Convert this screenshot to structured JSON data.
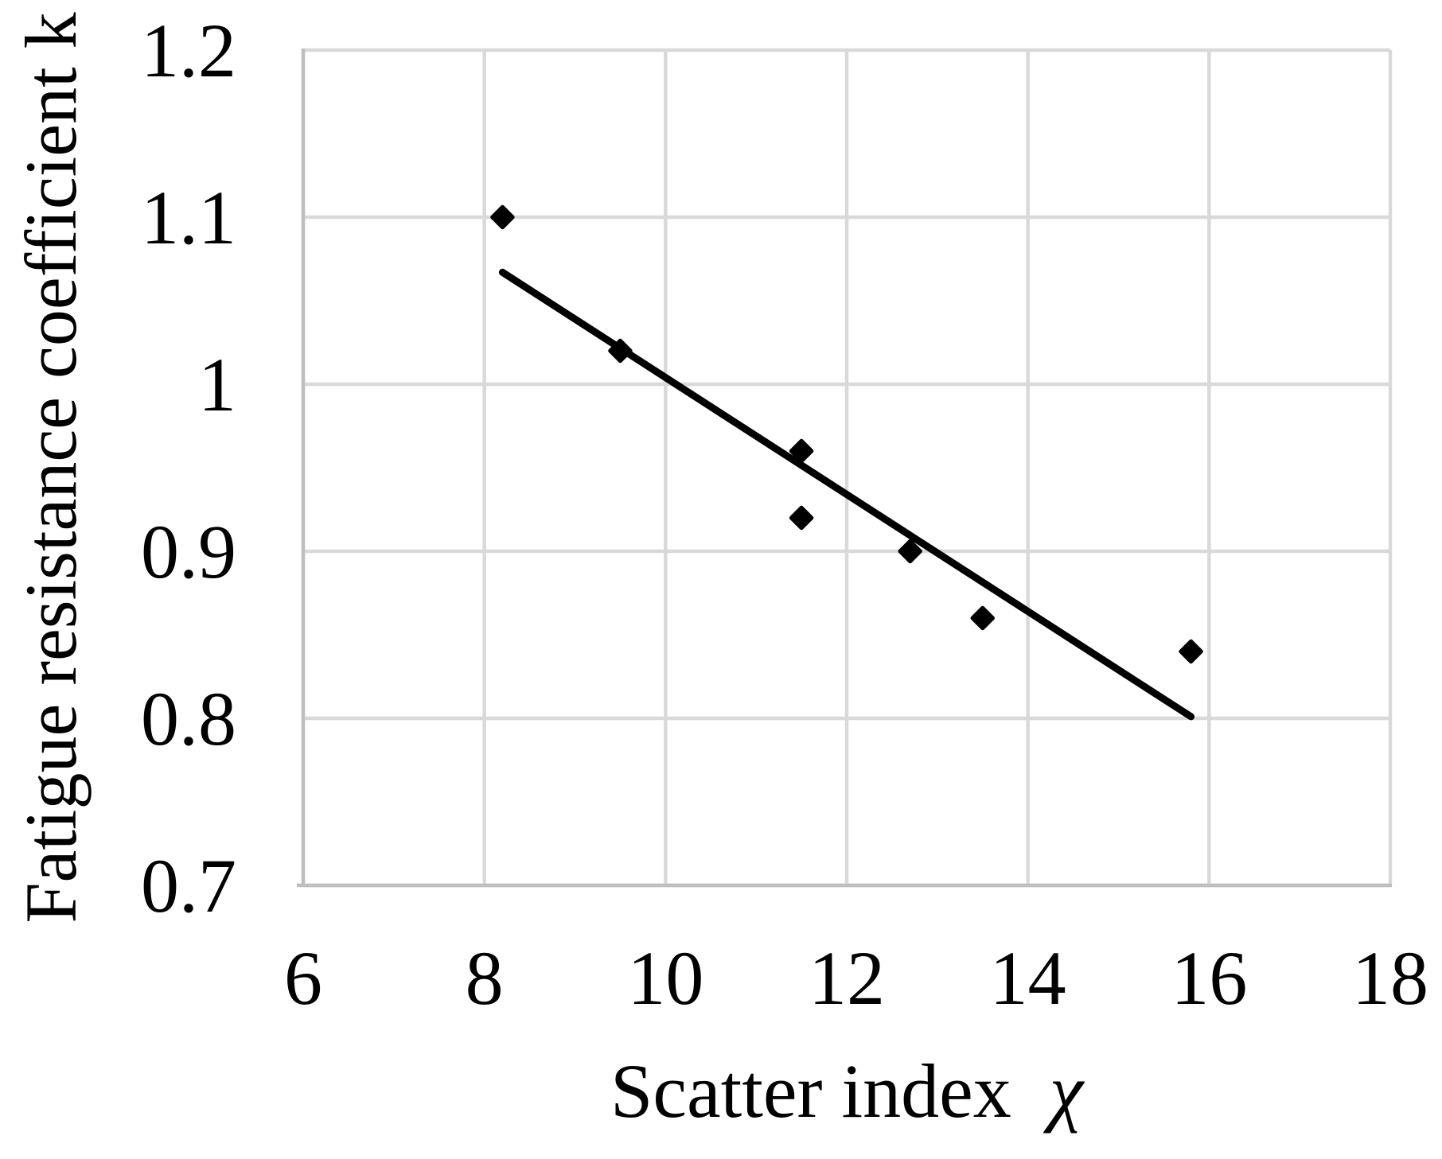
{
  "chart_data": {
    "type": "scatter",
    "title": "",
    "xlabel_text": "Scatter index ",
    "xlabel_symbol": "χ",
    "xlabel_full": "Scatter index χ",
    "ylabel": "Fatigue resistance coefficient k",
    "xlim": [
      6,
      18
    ],
    "ylim": [
      0.7,
      1.2
    ],
    "xticks": [
      {
        "v": 6,
        "label": "6"
      },
      {
        "v": 8,
        "label": "8"
      },
      {
        "v": 10,
        "label": "10"
      },
      {
        "v": 12,
        "label": "12"
      },
      {
        "v": 14,
        "label": "14"
      },
      {
        "v": 16,
        "label": "16"
      },
      {
        "v": 18,
        "label": "18"
      }
    ],
    "yticks": [
      {
        "v": 1.2,
        "label": "1.2"
      },
      {
        "v": 1.1,
        "label": "1.1"
      },
      {
        "v": 1.0,
        "label": "1"
      },
      {
        "v": 0.9,
        "label": "0.9"
      },
      {
        "v": 0.8,
        "label": "0.8"
      },
      {
        "v": 0.7,
        "label": "0.7"
      }
    ],
    "grid": true,
    "legend": "none",
    "series": [
      {
        "name": "fatigue-coefficient-points",
        "marker": "diamond",
        "color": "#000000",
        "points": [
          [
            8.2,
            1.1
          ],
          [
            9.5,
            1.02
          ],
          [
            11.5,
            0.96
          ],
          [
            11.5,
            0.92
          ],
          [
            12.7,
            0.9
          ],
          [
            13.5,
            0.86
          ],
          [
            15.8,
            0.84
          ]
        ]
      }
    ],
    "trendline": {
      "x1": 8.2,
      "y1": 1.067,
      "x2": 15.8,
      "y2": 0.801,
      "color": "#000000"
    },
    "colors": {
      "gridline": "#d9d9d9",
      "axis_line": "#bfbfbf",
      "marker": "#000000",
      "trendline": "#000000",
      "text": "#000000",
      "background": "#ffffff"
    }
  }
}
